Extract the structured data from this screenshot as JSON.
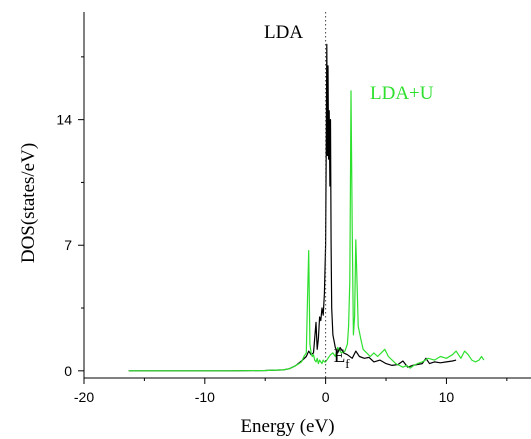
{
  "chart_data": {
    "type": "line",
    "title": "",
    "xlabel": "Energy (eV)",
    "ylabel": "DOS(states/eV)",
    "xlim": [
      -20,
      17
    ],
    "ylim": [
      -0.4,
      20
    ],
    "x_ticks": [
      -20,
      -10,
      0,
      10
    ],
    "x_tick_labels": [
      "-20",
      "-10",
      "0",
      "10"
    ],
    "y_ticks": [
      0,
      7,
      14
    ],
    "y_tick_labels": [
      "0",
      "7",
      "14"
    ],
    "fermi_level": {
      "x": 0,
      "label_main": "E",
      "label_sub": "f"
    },
    "grid": false,
    "legend": "none",
    "series": [
      {
        "name": "LDA",
        "color": "#000000",
        "points": [
          [
            -16.3,
            0.0
          ],
          [
            -12,
            0.0
          ],
          [
            -8,
            0.0
          ],
          [
            -5,
            0.02
          ],
          [
            -3.5,
            0.05
          ],
          [
            -3,
            0.12
          ],
          [
            -2.5,
            0.28
          ],
          [
            -2,
            0.55
          ],
          [
            -1.6,
            0.8
          ],
          [
            -1.4,
            1.1
          ],
          [
            -1.2,
            0.9
          ],
          [
            -1.0,
            1.0
          ],
          [
            -0.8,
            2.7
          ],
          [
            -0.7,
            1.2
          ],
          [
            -0.6,
            1.8
          ],
          [
            -0.5,
            3.0
          ],
          [
            -0.4,
            2.8
          ],
          [
            -0.3,
            3.5
          ],
          [
            -0.2,
            3.1
          ],
          [
            -0.1,
            4.3
          ],
          [
            0.0,
            7.0
          ],
          [
            0.05,
            12.0
          ],
          [
            0.1,
            18.2
          ],
          [
            0.15,
            12.0
          ],
          [
            0.2,
            17.0
          ],
          [
            0.25,
            11.8
          ],
          [
            0.3,
            14.5
          ],
          [
            0.35,
            10.3
          ],
          [
            0.4,
            14.0
          ],
          [
            0.45,
            7.0
          ],
          [
            0.5,
            3.5
          ],
          [
            0.6,
            2.0
          ],
          [
            0.8,
            1.3
          ],
          [
            1.0,
            1.0
          ],
          [
            1.2,
            1.3
          ],
          [
            1.5,
            1.0
          ],
          [
            1.8,
            0.9
          ],
          [
            2.2,
            0.7
          ],
          [
            2.5,
            1.1
          ],
          [
            2.8,
            0.8
          ],
          [
            3.2,
            0.7
          ],
          [
            3.6,
            0.75
          ],
          [
            4.0,
            0.5
          ],
          [
            4.5,
            0.6
          ],
          [
            5.0,
            0.4
          ],
          [
            5.5,
            0.3
          ],
          [
            6.0,
            0.35
          ],
          [
            6.4,
            0.55
          ],
          [
            6.8,
            0.2
          ],
          [
            7.2,
            0.3
          ],
          [
            7.6,
            0.35
          ],
          [
            8.0,
            0.4
          ],
          [
            8.3,
            0.7
          ],
          [
            8.6,
            0.4
          ],
          [
            9.0,
            0.5
          ],
          [
            9.5,
            0.45
          ],
          [
            10.0,
            0.5
          ],
          [
            10.5,
            0.55
          ],
          [
            10.8,
            0.6
          ]
        ]
      },
      {
        "name": "LDA+U",
        "color": "#2ee02e",
        "points": [
          [
            -16.3,
            0.0
          ],
          [
            -12,
            0.0
          ],
          [
            -8,
            0.0
          ],
          [
            -5,
            0.02
          ],
          [
            -3.5,
            0.05
          ],
          [
            -3,
            0.12
          ],
          [
            -2.5,
            0.28
          ],
          [
            -2.2,
            0.4
          ],
          [
            -2.0,
            0.5
          ],
          [
            -1.8,
            0.8
          ],
          [
            -1.6,
            1.0
          ],
          [
            -1.5,
            4.0
          ],
          [
            -1.4,
            6.7
          ],
          [
            -1.3,
            1.5
          ],
          [
            -1.2,
            1.0
          ],
          [
            -1.1,
            0.8
          ],
          [
            -1.0,
            0.9
          ],
          [
            -0.9,
            0.6
          ],
          [
            -0.8,
            0.5
          ],
          [
            -0.7,
            0.7
          ],
          [
            -0.6,
            0.4
          ],
          [
            -0.5,
            0.6
          ],
          [
            -0.4,
            0.5
          ],
          [
            -0.3,
            0.4
          ],
          [
            -0.2,
            0.6
          ],
          [
            -0.1,
            0.5
          ],
          [
            0.0,
            0.5
          ],
          [
            0.2,
            0.7
          ],
          [
            0.4,
            0.9
          ],
          [
            0.6,
            1.0
          ],
          [
            0.8,
            0.8
          ],
          [
            1.0,
            1.3
          ],
          [
            1.3,
            1.0
          ],
          [
            1.6,
            1.1
          ],
          [
            1.8,
            1.5
          ],
          [
            1.9,
            2.5
          ],
          [
            2.0,
            5.0
          ],
          [
            2.05,
            10.0
          ],
          [
            2.1,
            15.6
          ],
          [
            2.2,
            8.0
          ],
          [
            2.3,
            2.0
          ],
          [
            2.4,
            3.0
          ],
          [
            2.5,
            7.3
          ],
          [
            2.6,
            5.0
          ],
          [
            2.7,
            2.5
          ],
          [
            2.9,
            1.8
          ],
          [
            3.1,
            1.2
          ],
          [
            3.4,
            1.0
          ],
          [
            3.7,
            0.8
          ],
          [
            4.0,
            1.0
          ],
          [
            4.3,
            0.8
          ],
          [
            4.6,
            1.0
          ],
          [
            4.9,
            1.2
          ],
          [
            5.2,
            0.8
          ],
          [
            5.5,
            0.6
          ],
          [
            5.8,
            0.4
          ],
          [
            6.1,
            0.3
          ],
          [
            6.4,
            0.2
          ],
          [
            6.7,
            0.3
          ],
          [
            7.0,
            0.15
          ],
          [
            7.3,
            0.3
          ],
          [
            7.6,
            0.4
          ],
          [
            8.0,
            0.5
          ],
          [
            8.5,
            0.7
          ],
          [
            9.0,
            0.6
          ],
          [
            9.5,
            0.8
          ],
          [
            10.0,
            0.7
          ],
          [
            10.5,
            0.9
          ],
          [
            10.8,
            1.1
          ],
          [
            11.2,
            0.7
          ],
          [
            11.5,
            1.1
          ],
          [
            11.8,
            0.9
          ],
          [
            12.1,
            0.6
          ],
          [
            12.4,
            0.5
          ],
          [
            12.7,
            0.6
          ],
          [
            12.9,
            0.8
          ],
          [
            13.1,
            0.6
          ]
        ]
      }
    ],
    "annotations": [
      {
        "text": "LDA",
        "color": "#000000"
      },
      {
        "text": "LDA+U",
        "color": "#2ee02e"
      }
    ]
  }
}
